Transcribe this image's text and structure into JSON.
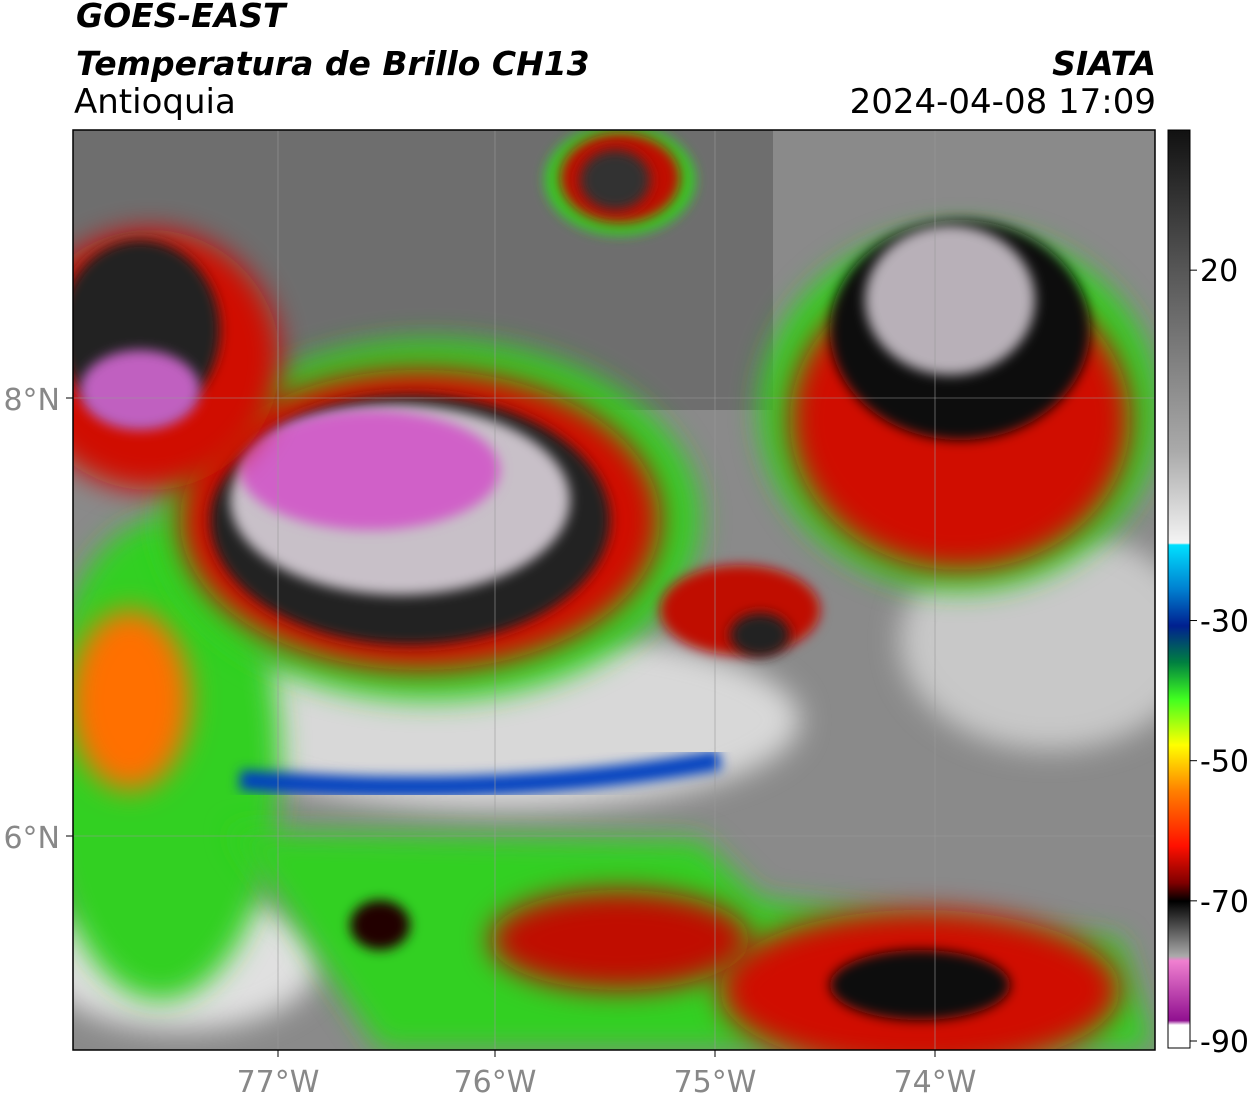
{
  "header": {
    "satellite": "GOES-EAST",
    "product": "Temperatura de Brillo CH13",
    "region": "Antioquia",
    "source": "SIATA",
    "datetime": "2024-04-08 17:09"
  },
  "map": {
    "lat_labels": [
      "8°N",
      "6°N"
    ],
    "lon_labels": [
      "77°W",
      "76°W",
      "75°W",
      "74°W"
    ]
  },
  "colorbar": {
    "range": [
      -91,
      40
    ],
    "ticks": [
      20,
      -30,
      -50,
      -70,
      -90
    ]
  }
}
